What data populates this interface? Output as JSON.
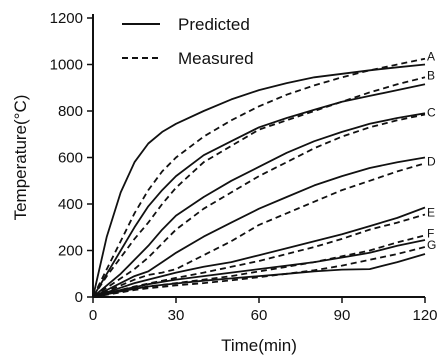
{
  "chart_data": {
    "type": "line",
    "title": "",
    "xlabel": "Time(min)",
    "ylabel": "Temperature(°C)",
    "xlim": [
      0,
      120
    ],
    "ylim": [
      0,
      1200
    ],
    "xticks": [
      0,
      30,
      60,
      90,
      120
    ],
    "yticks": [
      0,
      200,
      400,
      600,
      800,
      1000,
      1200
    ],
    "grid": false,
    "legend_position": "top-left",
    "legend": [
      {
        "label": "Predicted",
        "style": "solid"
      },
      {
        "label": "Measured",
        "style": "dashed"
      }
    ],
    "x": [
      0,
      5,
      10,
      15,
      20,
      25,
      30,
      40,
      50,
      60,
      70,
      80,
      90,
      100,
      110,
      120
    ],
    "series": [
      {
        "name": "A",
        "style": "solid",
        "values": [
          0,
          260,
          450,
          580,
          660,
          710,
          745,
          800,
          850,
          890,
          920,
          945,
          960,
          975,
          988,
          1000
        ]
      },
      {
        "name": "A",
        "style": "dashed",
        "values": [
          0,
          120,
          240,
          360,
          460,
          540,
          600,
          690,
          760,
          820,
          870,
          910,
          945,
          975,
          1000,
          1025
        ]
      },
      {
        "name": "B",
        "style": "solid",
        "values": [
          0,
          100,
          200,
          300,
          390,
          460,
          520,
          610,
          670,
          730,
          770,
          805,
          840,
          865,
          890,
          915
        ]
      },
      {
        "name": "B",
        "style": "dashed",
        "values": [
          0,
          90,
          170,
          250,
          320,
          400,
          470,
          580,
          650,
          720,
          760,
          800,
          840,
          880,
          915,
          945
        ]
      },
      {
        "name": "C",
        "style": "solid",
        "values": [
          0,
          50,
          100,
          160,
          220,
          290,
          350,
          430,
          500,
          560,
          620,
          670,
          710,
          745,
          770,
          790
        ]
      },
      {
        "name": "C",
        "style": "dashed",
        "values": [
          0,
          40,
          80,
          120,
          170,
          230,
          290,
          380,
          450,
          520,
          580,
          640,
          690,
          730,
          760,
          785
        ]
      },
      {
        "name": "D",
        "style": "solid",
        "values": [
          0,
          30,
          60,
          90,
          110,
          150,
          190,
          260,
          320,
          380,
          430,
          480,
          520,
          555,
          580,
          600
        ]
      },
      {
        "name": "D",
        "style": "dashed",
        "values": [
          0,
          25,
          50,
          75,
          95,
          105,
          120,
          180,
          240,
          310,
          360,
          410,
          460,
          500,
          540,
          575
        ]
      },
      {
        "name": "E",
        "style": "solid",
        "values": [
          0,
          20,
          40,
          60,
          75,
          90,
          105,
          130,
          150,
          180,
          210,
          240,
          270,
          305,
          340,
          385
        ]
      },
      {
        "name": "E",
        "style": "dashed",
        "values": [
          0,
          15,
          30,
          45,
          58,
          70,
          82,
          105,
          130,
          155,
          185,
          215,
          250,
          290,
          320,
          355
        ]
      },
      {
        "name": "F",
        "style": "solid",
        "values": [
          0,
          15,
          30,
          42,
          55,
          65,
          75,
          90,
          105,
          120,
          135,
          150,
          170,
          190,
          220,
          245
        ]
      },
      {
        "name": "F",
        "style": "dashed",
        "values": [
          0,
          12,
          25,
          35,
          45,
          52,
          60,
          75,
          90,
          110,
          130,
          150,
          175,
          200,
          235,
          265
        ]
      },
      {
        "name": "G",
        "style": "solid",
        "values": [
          0,
          12,
          24,
          35,
          45,
          52,
          58,
          70,
          80,
          90,
          100,
          110,
          118,
          120,
          150,
          185
        ]
      },
      {
        "name": "G",
        "style": "dashed",
        "values": [
          0,
          10,
          20,
          30,
          38,
          44,
          50,
          60,
          72,
          85,
          100,
          115,
          135,
          160,
          185,
          215
        ]
      }
    ]
  }
}
